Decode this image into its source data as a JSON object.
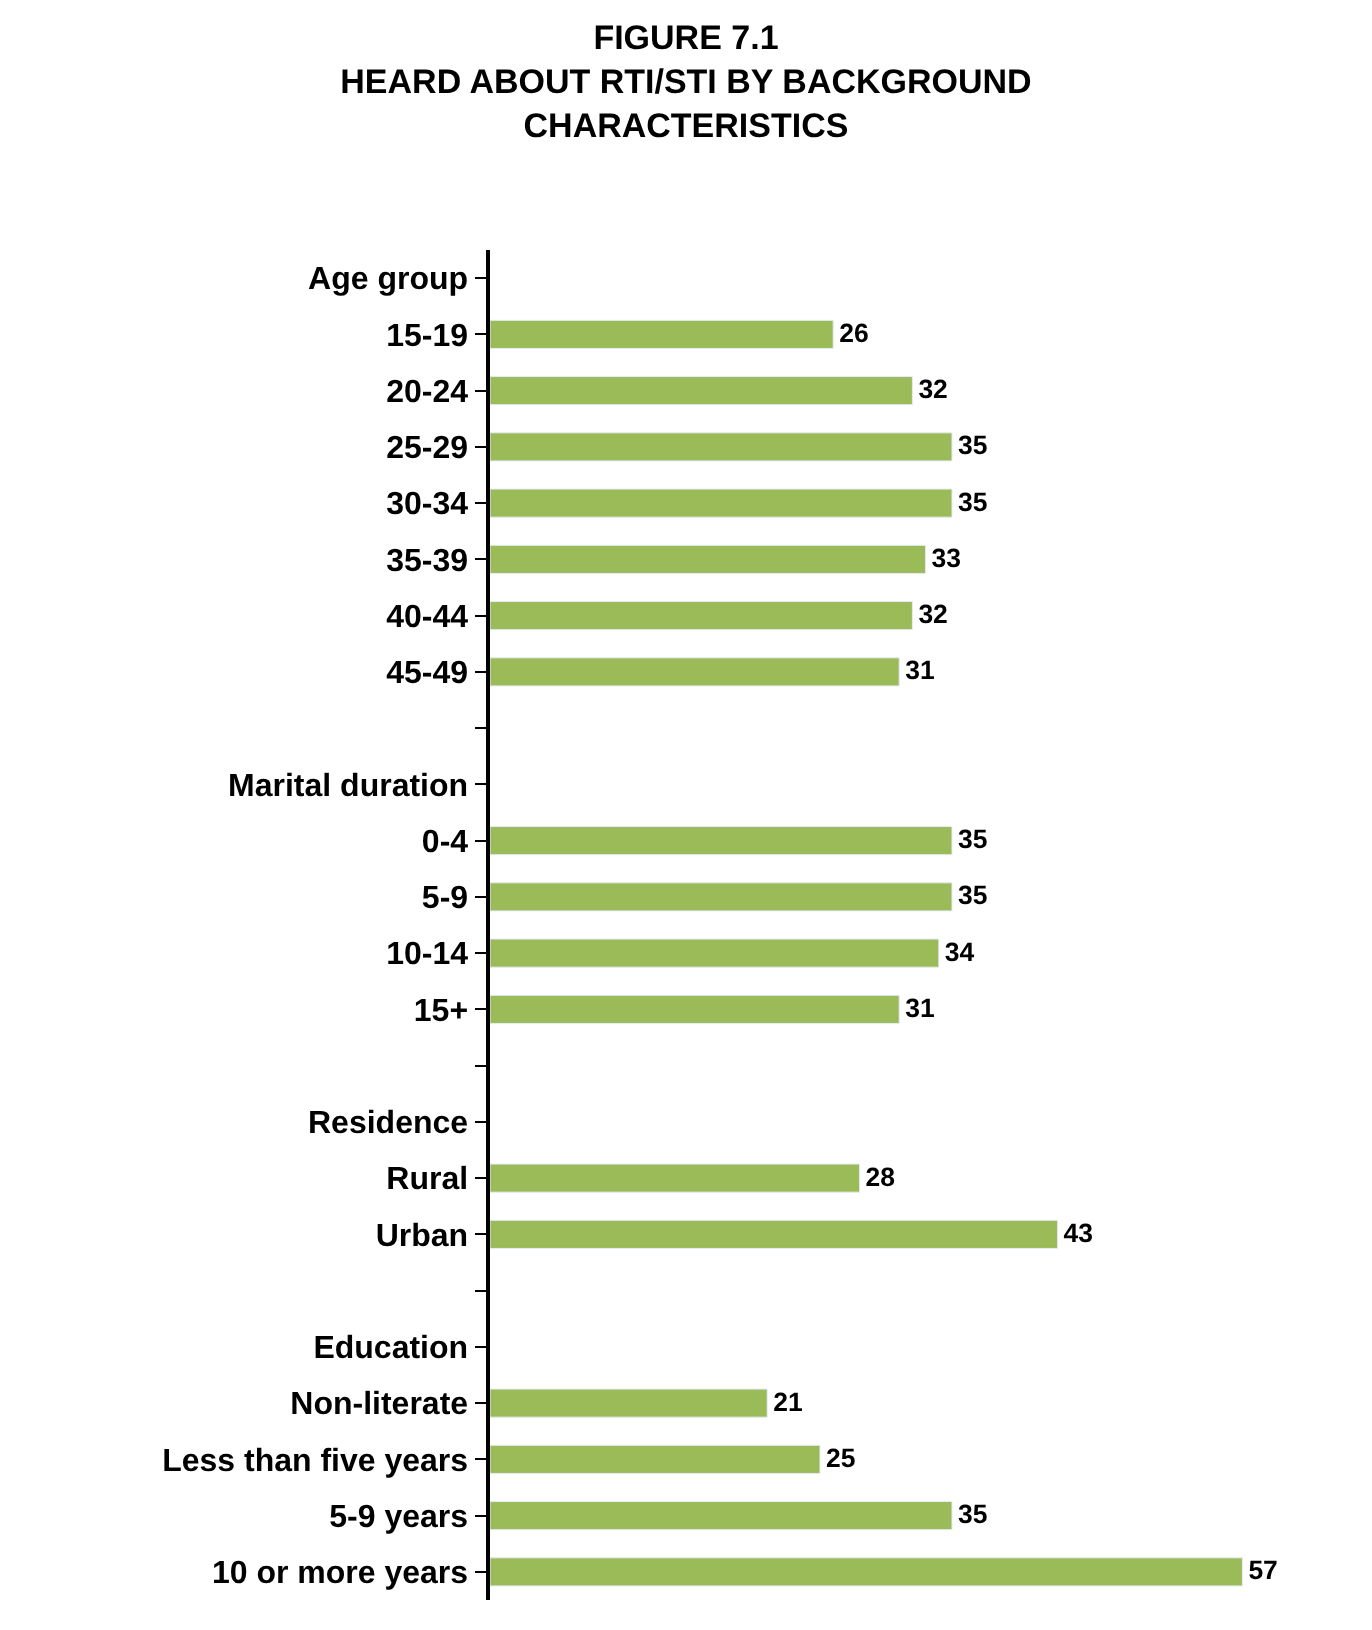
{
  "chart_data": {
    "type": "bar",
    "orientation": "horizontal",
    "title": "FIGURE 7.1\nHEARD ABOUT RTI/STI BY BACKGROUND\nCHARACTERISTICS",
    "categories": [
      "Age group",
      "15-19",
      "20-24",
      "25-29",
      "30-34",
      "35-39",
      "40-44",
      "45-49",
      null,
      "Marital duration",
      "0-4",
      "5-9",
      "10-14",
      "15+",
      null,
      "Residence",
      "Rural",
      "Urban",
      null,
      "Education",
      "Non-literate",
      "Less than five years",
      "5-9 years",
      "10 or more years"
    ],
    "values": [
      null,
      26,
      32,
      35,
      35,
      33,
      32,
      31,
      null,
      null,
      35,
      35,
      34,
      31,
      null,
      null,
      28,
      43,
      null,
      null,
      21,
      25,
      35,
      57
    ],
    "color": "#9bbb59",
    "data_labels": true,
    "tick_labels": "y",
    "legend": false
  }
}
